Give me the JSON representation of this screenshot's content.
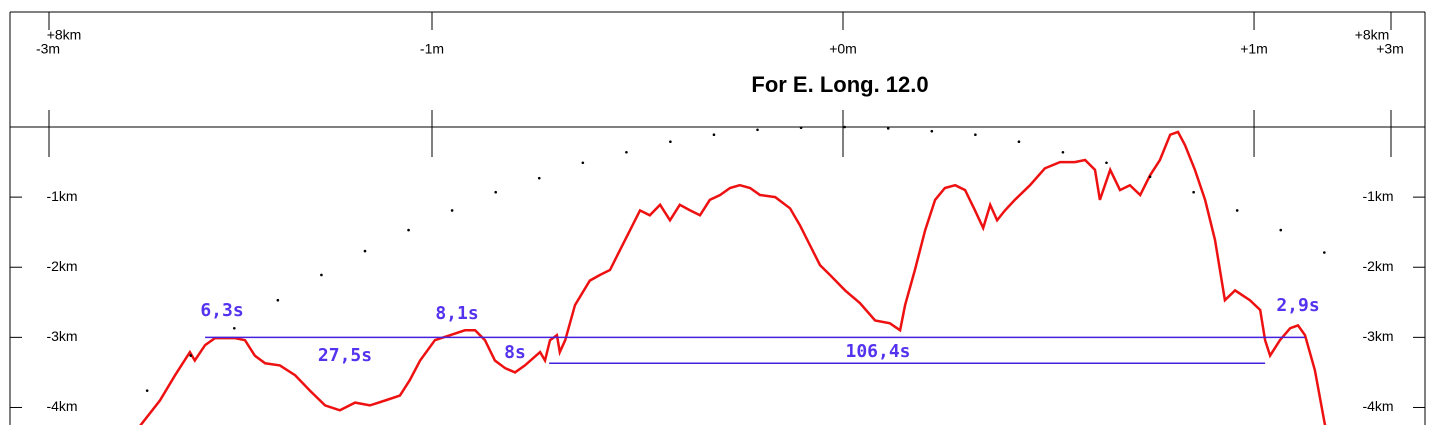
{
  "chart_data": {
    "type": "line",
    "title": "For E. Long. 12.0",
    "left_corner": [
      "+8km",
      "-3m"
    ],
    "right_corner": [
      "+8km",
      "+3m"
    ],
    "xlim": [
      -2.051,
      1.45
    ],
    "xticks": [
      {
        "value": -1,
        "label": "-1m"
      },
      {
        "value": 0,
        "label": "+0m"
      },
      {
        "value": 1,
        "label": "+1m"
      }
    ],
    "ylim": [
      -4.25,
      0
    ],
    "yticks": [
      {
        "value": -1,
        "label": "-1km"
      },
      {
        "value": -2,
        "label": "-2km"
      },
      {
        "value": -3,
        "label": "-3km"
      },
      {
        "value": -4,
        "label": "-4km"
      }
    ],
    "series": [
      {
        "style": "line",
        "color": "#ee1111",
        "x": [
          -1.71,
          -1.662,
          -1.625,
          -1.589,
          -1.577,
          -1.552,
          -1.528,
          -1.479,
          -1.455,
          -1.431,
          -1.406,
          -1.37,
          -1.333,
          -1.297,
          -1.26,
          -1.224,
          -1.187,
          -1.151,
          -1.114,
          -1.078,
          -1.054,
          -1.029,
          -0.993,
          -0.956,
          -0.92,
          -0.895,
          -0.871,
          -0.847,
          -0.822,
          -0.798,
          -0.774,
          -0.737,
          -0.725,
          -0.713,
          -0.696,
          -0.689,
          -0.676,
          -0.652,
          -0.616,
          -0.591,
          -0.567,
          -0.543,
          -0.518,
          -0.494,
          -0.47,
          -0.445,
          -0.421,
          -0.397,
          -0.372,
          -0.348,
          -0.324,
          -0.299,
          -0.275,
          -0.251,
          -0.226,
          -0.202,
          -0.165,
          -0.129,
          -0.105,
          -0.08,
          -0.056,
          -0.032,
          0.005,
          0.041,
          0.078,
          0.114,
          0.139,
          0.151,
          0.175,
          0.2,
          0.224,
          0.248,
          0.273,
          0.297,
          0.321,
          0.341,
          0.358,
          0.375,
          0.394,
          0.418,
          0.455,
          0.491,
          0.528,
          0.564,
          0.589,
          0.613,
          0.625,
          0.65,
          0.674,
          0.698,
          0.723,
          0.747,
          0.771,
          0.796,
          0.815,
          0.832,
          0.856,
          0.881,
          0.905,
          0.929,
          0.954,
          0.99,
          1.015,
          1.027,
          1.039,
          1.063,
          1.088,
          1.107,
          1.124,
          1.148,
          1.173
        ],
        "values": [
          -4.26,
          -3.9,
          -3.54,
          -3.21,
          -3.33,
          -3.11,
          -3.01,
          -3.01,
          -3.04,
          -3.26,
          -3.37,
          -3.4,
          -3.54,
          -3.76,
          -3.97,
          -4.04,
          -3.93,
          -3.97,
          -3.9,
          -3.83,
          -3.61,
          -3.33,
          -3.04,
          -2.97,
          -2.9,
          -2.9,
          -3.04,
          -3.33,
          -3.44,
          -3.5,
          -3.4,
          -3.21,
          -3.33,
          -3.04,
          -2.97,
          -3.21,
          -3.04,
          -2.54,
          -2.19,
          -2.11,
          -2.04,
          -1.76,
          -1.47,
          -1.19,
          -1.26,
          -1.11,
          -1.33,
          -1.11,
          -1.19,
          -1.26,
          -1.04,
          -0.97,
          -0.87,
          -0.83,
          -0.87,
          -0.97,
          -1.0,
          -1.16,
          -1.4,
          -1.69,
          -1.97,
          -2.11,
          -2.33,
          -2.51,
          -2.76,
          -2.8,
          -2.9,
          -2.54,
          -2.04,
          -1.47,
          -1.04,
          -0.87,
          -0.83,
          -0.9,
          -1.19,
          -1.44,
          -1.11,
          -1.33,
          -1.19,
          -1.04,
          -0.83,
          -0.59,
          -0.5,
          -0.5,
          -0.47,
          -0.61,
          -1.04,
          -0.61,
          -0.9,
          -0.83,
          -0.97,
          -0.69,
          -0.47,
          -0.11,
          -0.07,
          -0.26,
          -0.61,
          -1.04,
          -1.61,
          -2.47,
          -2.33,
          -2.47,
          -2.61,
          -3.04,
          -3.26,
          -3.04,
          -2.87,
          -2.83,
          -2.97,
          -3.47,
          -4.26
        ]
      },
      {
        "style": "dots",
        "color": "#000000",
        "x": [
          -1.693,
          -1.587,
          -1.481,
          -1.375,
          -1.269,
          -1.163,
          -1.057,
          -0.951,
          -0.845,
          -0.739,
          -0.633,
          -0.527,
          -0.42,
          -0.314,
          -0.208,
          -0.102,
          0.004,
          0.11,
          0.216,
          0.322,
          0.428,
          0.535,
          0.641,
          0.747,
          0.853,
          0.959,
          1.065,
          1.171
        ],
        "values": [
          -3.76,
          -3.26,
          -2.87,
          -2.47,
          -2.11,
          -1.77,
          -1.47,
          -1.19,
          -0.93,
          -0.73,
          -0.51,
          -0.36,
          -0.21,
          -0.11,
          -0.04,
          -0.01,
          0,
          -0.02,
          -0.06,
          -0.11,
          -0.21,
          -0.36,
          -0.51,
          -0.71,
          -0.93,
          -1.19,
          -1.47,
          -1.79
        ]
      }
    ],
    "reference_lines": [
      {
        "y": -3.0,
        "x": [
          -1.552,
          1.124
        ],
        "color": "#4422dd"
      },
      {
        "y": -3.37,
        "x": [
          -0.715,
          1.027
        ],
        "color": "#4422dd"
      }
    ],
    "annotations": [
      "6,3s",
      "27,5s",
      "8,1s",
      "8s",
      "106,4s",
      "2,9s"
    ],
    "annotation_color": "#5533ee"
  }
}
